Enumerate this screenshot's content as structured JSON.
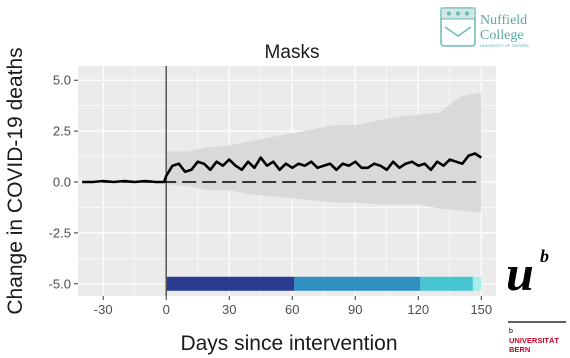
{
  "chart_data": {
    "type": "line",
    "title": "Masks",
    "xlabel": "Days since intervention",
    "ylabel": "Change in COVID-19 deaths",
    "xlim": [
      -42,
      157
    ],
    "ylim": [
      -5.6,
      5.7
    ],
    "xticks": [
      -30,
      0,
      30,
      60,
      90,
      120,
      150
    ],
    "yticks": [
      -5.0,
      -2.5,
      0.0,
      2.5,
      5.0
    ],
    "ytick_labels": [
      "-5.0",
      "-2.5",
      "0.0",
      "2.5",
      "5.0"
    ],
    "grid": true,
    "intervention_day": 0,
    "series": [
      {
        "x": [
          -40,
          -35,
          -30,
          -25,
          -20,
          -15,
          -10,
          -5,
          -1,
          0,
          3,
          6,
          9,
          12,
          15,
          18,
          21,
          24,
          27,
          30,
          33,
          36,
          39,
          42,
          45,
          48,
          51,
          54,
          57,
          60,
          63,
          66,
          69,
          72,
          75,
          78,
          81,
          84,
          87,
          90,
          93,
          96,
          99,
          102,
          105,
          108,
          111,
          114,
          117,
          120,
          123,
          126,
          129,
          132,
          135,
          138,
          141,
          144,
          147,
          150
        ],
        "y": [
          0.0,
          0.0,
          0.05,
          0.0,
          0.05,
          0.0,
          0.05,
          0.0,
          0.0,
          0.3,
          0.8,
          0.9,
          0.5,
          0.6,
          1.0,
          0.9,
          0.6,
          1.0,
          0.8,
          1.1,
          0.8,
          0.6,
          1.0,
          0.7,
          1.2,
          0.8,
          1.0,
          0.6,
          0.9,
          0.7,
          0.9,
          0.8,
          1.0,
          0.7,
          0.8,
          0.9,
          0.6,
          0.9,
          0.8,
          1.0,
          0.7,
          0.7,
          0.9,
          0.8,
          0.6,
          1.0,
          0.7,
          0.9,
          1.0,
          0.8,
          0.9,
          0.6,
          1.0,
          0.8,
          1.1,
          1.0,
          0.9,
          1.3,
          1.4,
          1.2
        ]
      },
      {
        "x": [
          -40,
          0,
          30,
          60,
          90,
          120,
          150
        ],
        "y": [
          0.0,
          0.0,
          0.0,
          0.0,
          0.0,
          0.0,
          0.0
        ]
      }
    ],
    "band": {
      "x": [
        0,
        10,
        20,
        30,
        40,
        50,
        60,
        70,
        80,
        90,
        100,
        110,
        120,
        130,
        140,
        150
      ],
      "lower": [
        -0.1,
        -0.2,
        -0.4,
        -0.4,
        -0.6,
        -0.7,
        -0.8,
        -0.9,
        -1.0,
        -1.0,
        -1.1,
        -1.1,
        -1.1,
        -1.3,
        -1.4,
        -1.5
      ],
      "upper": [
        1.5,
        1.5,
        1.7,
        1.8,
        2.0,
        2.2,
        2.4,
        2.6,
        2.8,
        2.8,
        3.0,
        3.2,
        3.3,
        3.4,
        4.2,
        4.4
      ]
    },
    "phases": [
      {
        "start": 0,
        "end": 61,
        "color": "#2a3c92"
      },
      {
        "start": 61,
        "end": 121,
        "color": "#2e8fc0"
      },
      {
        "start": 121,
        "end": 146,
        "color": "#47c6d2"
      },
      {
        "start": 146,
        "end": 150,
        "color": "#a6ede8"
      }
    ],
    "colors": {
      "line": "#000000",
      "band": "#d9d9d9",
      "panel": "#ebebeb",
      "grid": "#ffffff",
      "vline": "#555555"
    }
  },
  "logos": {
    "nuffield_line1": "Nuffield",
    "nuffield_line2": "College",
    "nuffield_sub": "UNIVERSITY OF OXFORD",
    "bern_mark": "u",
    "bern_sup": "b",
    "bern_line1": "UNIVERSITÄT",
    "bern_line2": "BERN",
    "bern_small": "b"
  }
}
